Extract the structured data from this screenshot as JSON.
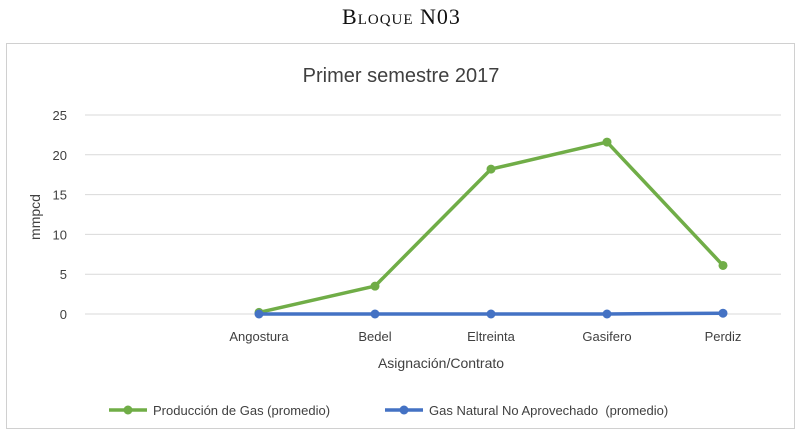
{
  "heading": "Bloque N03",
  "chart_data": {
    "type": "line",
    "title": "Primer semestre 2017",
    "xlabel": "Asignación/Contrato",
    "ylabel": "mmpcd",
    "categories": [
      "",
      "Angostura",
      "Bedel",
      "Eltreinta",
      "Gasifero",
      "Perdiz"
    ],
    "ylim": [
      0,
      25
    ],
    "yticks": [
      0,
      5,
      10,
      15,
      20,
      25
    ],
    "grid": true,
    "legend_position": "bottom",
    "series": [
      {
        "name": "Producción de Gas (promedio)",
        "color": "#70ad47",
        "values": [
          null,
          0.2,
          3.5,
          18.2,
          21.6,
          6.1
        ]
      },
      {
        "name": "Gas Natural No Aprovechado  (promedio)",
        "color": "#4472c4",
        "values": [
          null,
          0.0,
          0.0,
          0.0,
          0.0,
          0.1
        ]
      }
    ]
  }
}
